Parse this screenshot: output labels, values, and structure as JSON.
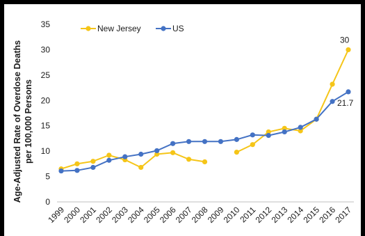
{
  "chart_data": {
    "type": "line",
    "title": "",
    "xlabel": "",
    "ylabel_line1": "Age-Adjusted Rate of Overdose Deaths",
    "ylabel_line2": "per 100,000 Persons",
    "ylim": [
      0,
      35
    ],
    "yticks": [
      0,
      5,
      10,
      15,
      20,
      25,
      30,
      35
    ],
    "x": [
      "1999",
      "2000",
      "2001",
      "2002",
      "2003",
      "2004",
      "2005",
      "2006",
      "2007",
      "2008",
      "2009",
      "2010",
      "2011",
      "2012",
      "2013",
      "2014",
      "2015",
      "2016",
      "2017"
    ],
    "grid": false,
    "legend_position": "top-left",
    "series": [
      {
        "name": "New Jersey",
        "color": "#F5C518",
        "values": [
          6.5,
          7.5,
          8.0,
          9.2,
          8.3,
          6.8,
          9.4,
          9.7,
          8.4,
          7.9,
          null,
          9.8,
          11.3,
          13.8,
          14.5,
          14.0,
          16.3,
          23.2,
          30.0
        ]
      },
      {
        "name": "US",
        "color": "#4472C4",
        "values": [
          6.1,
          6.2,
          6.8,
          8.2,
          8.9,
          9.4,
          10.1,
          11.5,
          11.9,
          11.9,
          11.9,
          12.3,
          13.2,
          13.1,
          13.8,
          14.7,
          16.3,
          19.8,
          21.7
        ]
      }
    ],
    "data_labels": [
      {
        "series": "New Jersey",
        "x": "2017",
        "text": "30"
      },
      {
        "series": "US",
        "x": "2017",
        "text": "21.7"
      }
    ]
  }
}
